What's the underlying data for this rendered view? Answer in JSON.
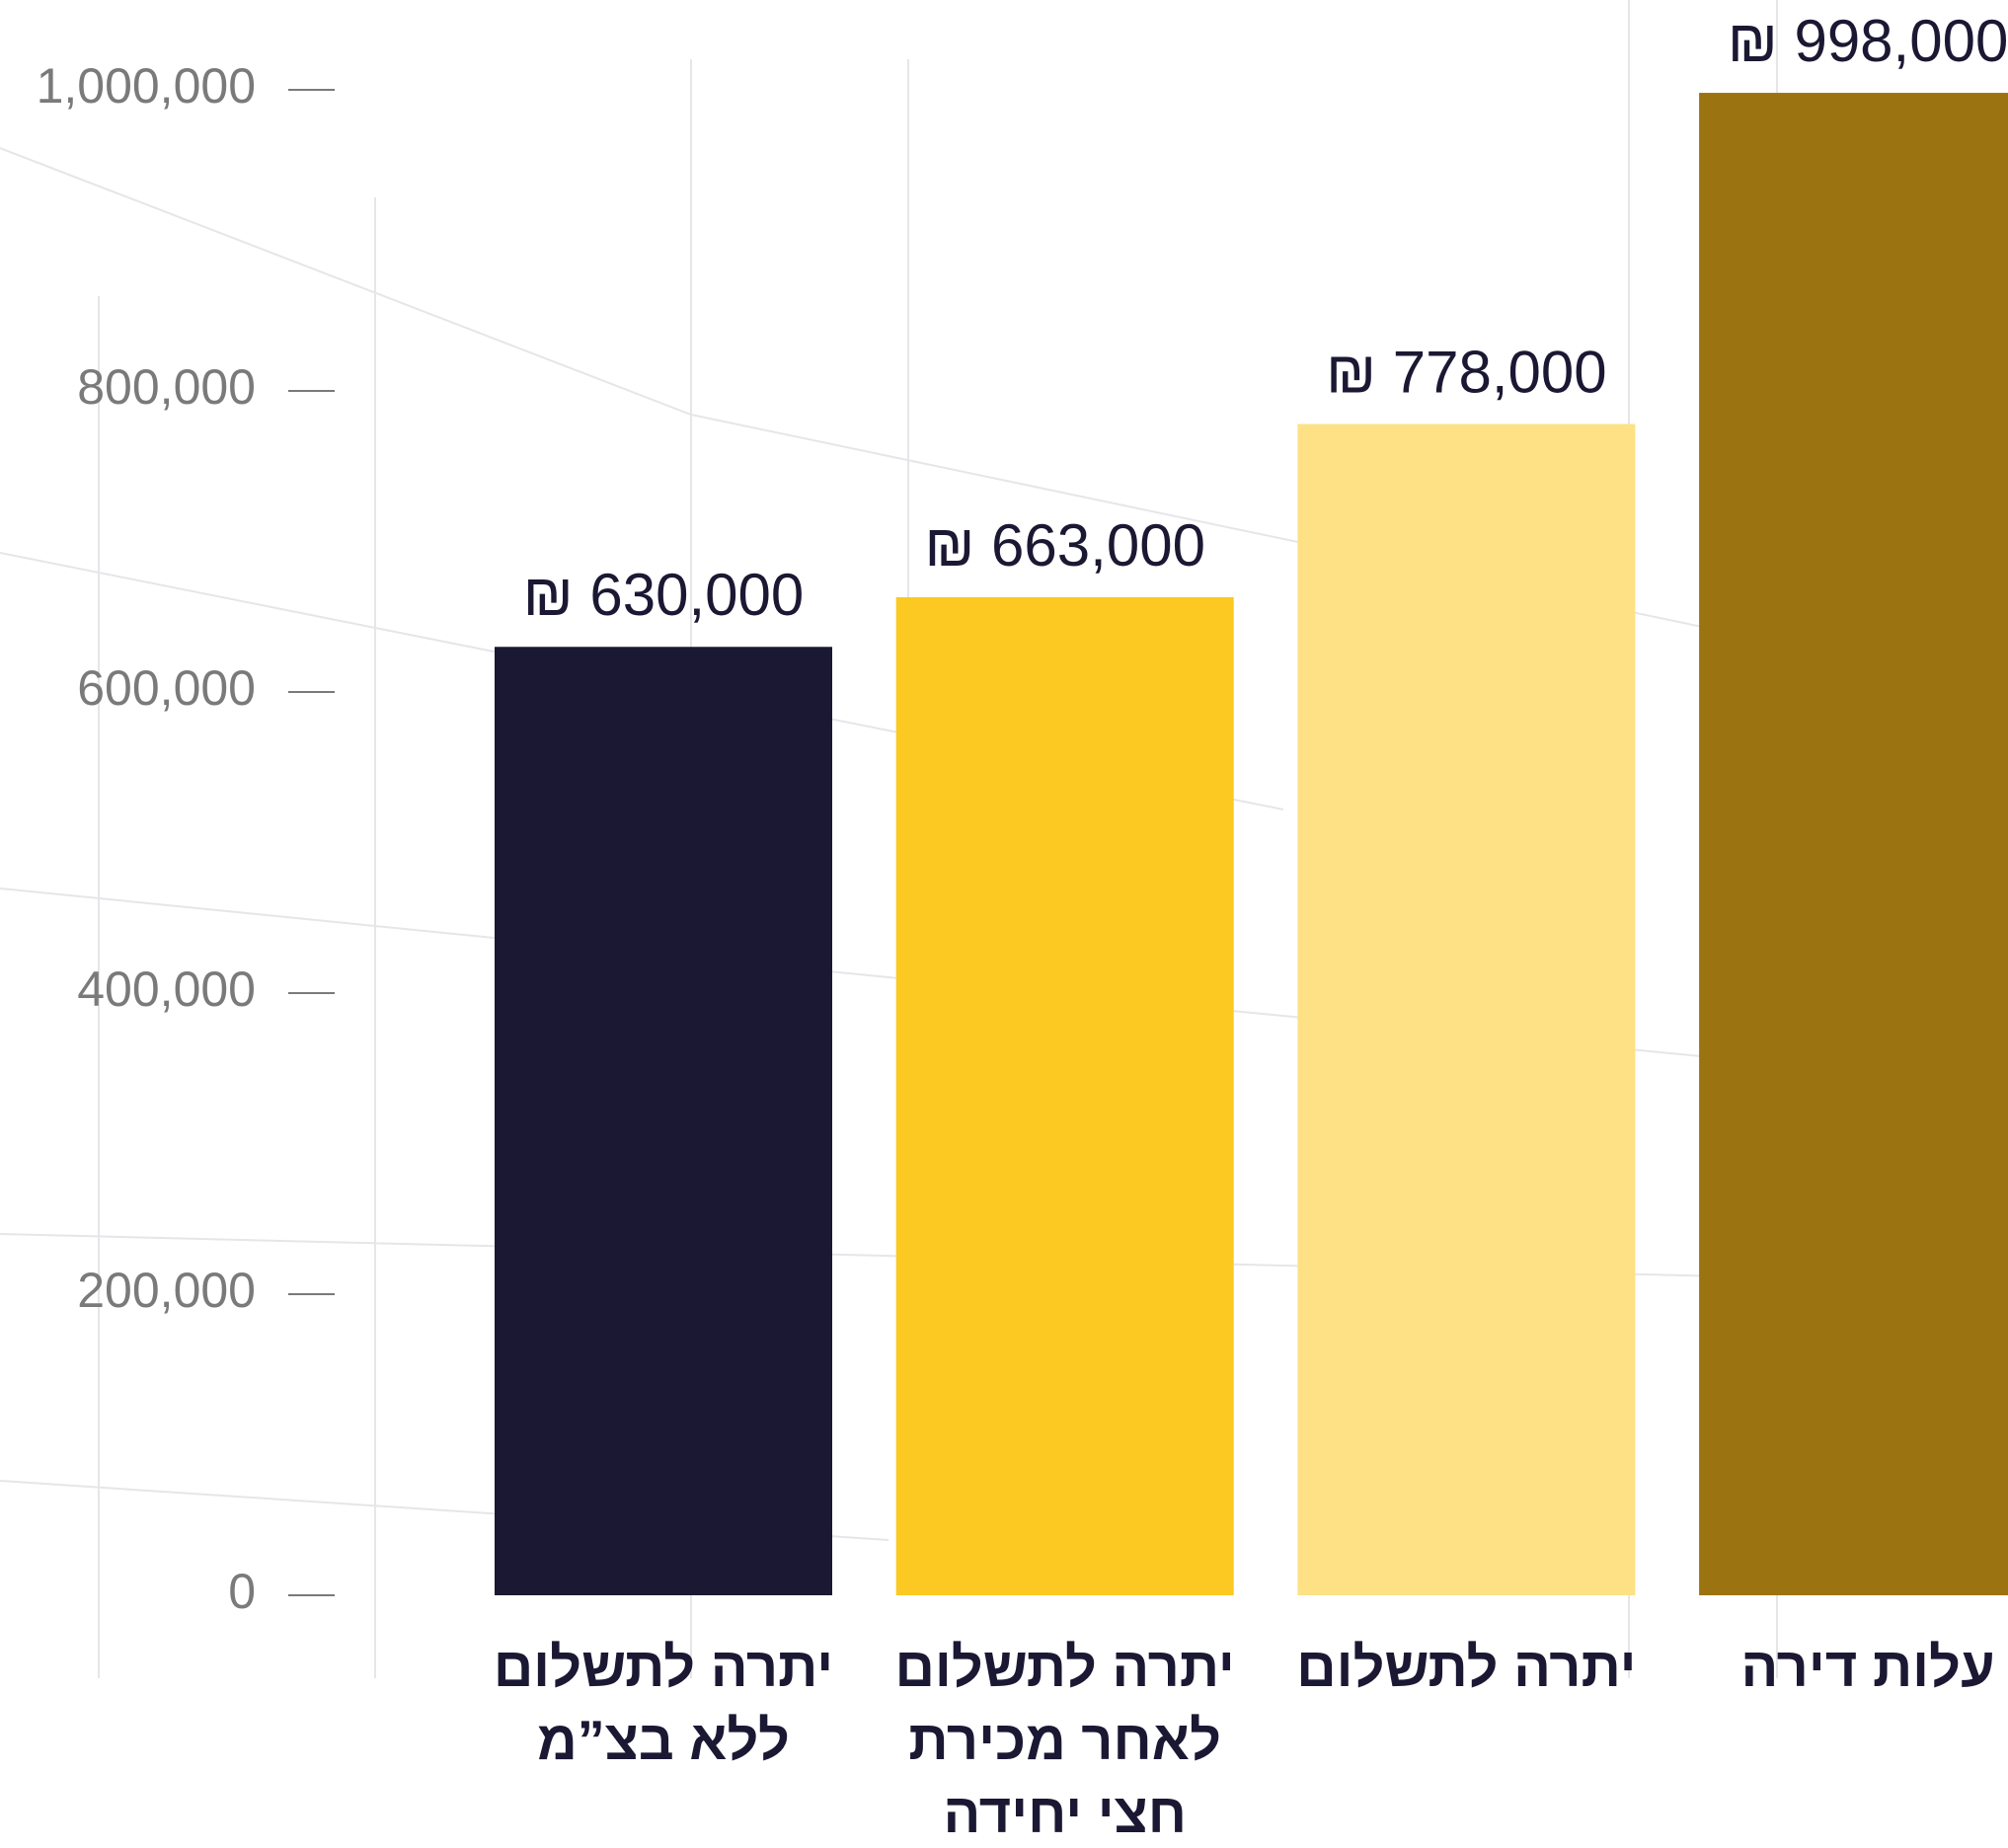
{
  "chart_data": {
    "type": "bar",
    "categories": [
      [
        "יתרה לתשלום",
        "ללא בצ”מ"
      ],
      [
        "יתרה לתשלום",
        "לאחר מכירת",
        "חצי יחידה"
      ],
      [
        "יתרה לתשלום"
      ],
      [
        "עלות דירה"
      ]
    ],
    "values": [
      630000,
      663000,
      778000,
      998000
    ],
    "value_labels": [
      "₪ 630,000",
      "₪ 663,000",
      "₪ 778,000",
      "₪ 998,000"
    ],
    "colors": [
      "#1b1833",
      "#fbc922",
      "#fde184",
      "#9c7311"
    ],
    "ylim": [
      0,
      1000000
    ],
    "yticks": [
      0,
      {
        "value": 200000,
        "label": "200,000"
      },
      {
        "value": 400000,
        "label": "400,000"
      },
      {
        "value": 600000,
        "label": "600,000"
      },
      {
        "value": 800000,
        "label": "800,000"
      },
      {
        "value": 1000000,
        "label": "1,000,000"
      }
    ]
  }
}
